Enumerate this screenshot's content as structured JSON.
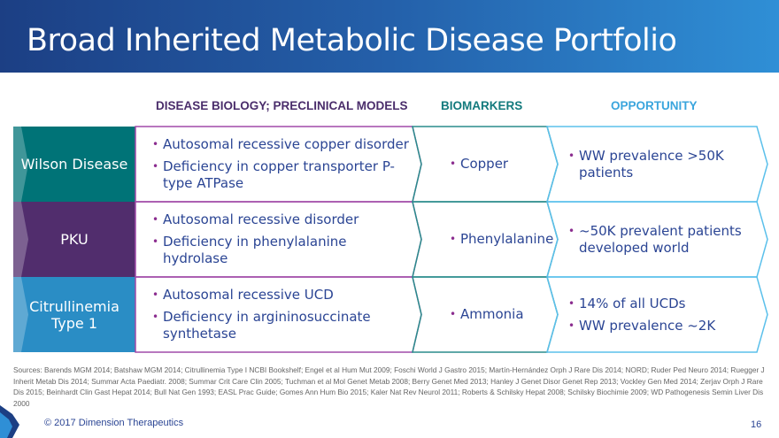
{
  "title": "Broad Inherited Metabolic Disease Portfolio",
  "headers": {
    "biology": "DISEASE BIOLOGY; PRECLINICAL MODELS",
    "biomarkers": "BIOMARKERS",
    "opportunity": "OPPORTUNITY"
  },
  "rows": [
    {
      "label": [
        "Wilson Disease"
      ],
      "color": "#007377",
      "biology": [
        "Autosomal recessive copper disorder",
        "Deficiency in copper transporter P-type ATPase"
      ],
      "biomarkers": [
        "Copper"
      ],
      "opportunity": [
        "WW prevalence >50K patients"
      ]
    },
    {
      "label": [
        "PKU"
      ],
      "color": "#512d6d",
      "biology": [
        "Autosomal recessive disorder",
        "Deficiency in phenylalanine hydrolase"
      ],
      "biomarkers": [
        "Phenylalanine"
      ],
      "opportunity": [
        "~50K prevalent patients developed world"
      ]
    },
    {
      "label": [
        "Citrullinemia",
        "Type 1"
      ],
      "color": "#2a8dc5",
      "biology": [
        "Autosomal recessive UCD",
        "Deficiency in argininosuccinate synthetase"
      ],
      "biomarkers": [
        "Ammonia"
      ],
      "opportunity": [
        "14% of all UCDs",
        "WW prevalence ~2K"
      ]
    }
  ],
  "sources": "Sources: Barends MGM 2014; Batshaw MGM 2014; Citrullinemia Type I NCBI Bookshelf; Engel et al Hum Mut 2009; Foschi World J Gastro 2015; Martín-Hernández Orph J Rare Dis 2014; NORD; Ruder Ped Neuro 2014; Ruegger J Inherit Metab Dis 2014; Summar Acta Paediatr. 2008; Summar Crit Care Clin 2005; Tuchman et al Mol Genet Metab 2008; Berry Genet Med 2013; Hanley J Genet Disor Genet Rep 2013; Vockley Gen Med 2014; Zerjav Orph J Rare Dis 2015; Beinhardt Clin Gast Hepat 2014; Bull Nat Gen 1993; EASL Prac Guide; Gomes Ann Hum Bio 2015; Kaler Nat Rev Neurol 2011; Roberts & Schilsky Hepat 2008; Schilsky Biochimie 2009; WD Pathogenesis Semin Liver Dis 2000",
  "footer": {
    "copyright": "© 2017 Dimension Therapeutics",
    "page": "16",
    "logo_icon": "dimension-logo-icon"
  },
  "colors": {
    "col1": "#a04aa8",
    "col2": "#2a8c8c",
    "col3": "#5bc0eb",
    "header1": "#4a2d6b",
    "header2": "#137a7d",
    "header3": "#3aa5dd"
  }
}
